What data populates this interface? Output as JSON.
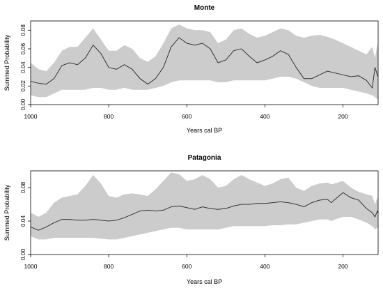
{
  "chart_data": [
    {
      "type": "area",
      "title": "Monte",
      "xlabel": "Years cal BP",
      "ylabel": "Summed Probability",
      "xlim": [
        1000,
        110
      ],
      "ylim": [
        0,
        0.09
      ],
      "xticks": [
        1000,
        800,
        600,
        400,
        200
      ],
      "yticks": [
        0.0,
        0.02,
        0.04,
        0.06,
        0.08
      ],
      "ytick_labels": [
        "0.00",
        "0.02",
        "0.04",
        "0.06",
        "0.08"
      ],
      "band_color": "#cccccc",
      "line_color": "#333333",
      "series": [
        {
          "role": "mean",
          "x": [
            1000,
            980,
            960,
            940,
            920,
            900,
            880,
            860,
            840,
            820,
            800,
            780,
            760,
            740,
            720,
            700,
            680,
            660,
            640,
            620,
            600,
            580,
            560,
            540,
            520,
            500,
            480,
            460,
            440,
            420,
            400,
            380,
            360,
            340,
            320,
            300,
            280,
            260,
            240,
            220,
            200,
            180,
            160,
            140,
            125,
            118,
            112,
            110
          ],
          "y": [
            0.025,
            0.023,
            0.022,
            0.028,
            0.042,
            0.045,
            0.043,
            0.05,
            0.064,
            0.055,
            0.04,
            0.038,
            0.043,
            0.038,
            0.028,
            0.022,
            0.028,
            0.04,
            0.062,
            0.072,
            0.066,
            0.064,
            0.066,
            0.06,
            0.045,
            0.048,
            0.058,
            0.06,
            0.052,
            0.045,
            0.048,
            0.052,
            0.058,
            0.054,
            0.04,
            0.028,
            0.028,
            0.032,
            0.036,
            0.034,
            0.032,
            0.03,
            0.031,
            0.026,
            0.018,
            0.04,
            0.032,
            0.03
          ]
        },
        {
          "role": "upper",
          "x": [
            1000,
            980,
            960,
            940,
            920,
            900,
            880,
            860,
            840,
            820,
            800,
            780,
            760,
            740,
            720,
            700,
            680,
            660,
            640,
            620,
            600,
            580,
            560,
            540,
            520,
            500,
            480,
            460,
            440,
            420,
            400,
            380,
            360,
            340,
            320,
            300,
            280,
            260,
            240,
            220,
            200,
            180,
            160,
            140,
            125,
            118,
            112,
            110
          ],
          "y": [
            0.045,
            0.038,
            0.036,
            0.045,
            0.058,
            0.062,
            0.062,
            0.072,
            0.082,
            0.07,
            0.058,
            0.058,
            0.064,
            0.06,
            0.05,
            0.046,
            0.052,
            0.066,
            0.082,
            0.086,
            0.082,
            0.08,
            0.08,
            0.078,
            0.066,
            0.07,
            0.08,
            0.082,
            0.076,
            0.072,
            0.074,
            0.078,
            0.082,
            0.08,
            0.074,
            0.072,
            0.074,
            0.075,
            0.073,
            0.07,
            0.066,
            0.062,
            0.058,
            0.054,
            0.062,
            0.05,
            0.065,
            0.062
          ]
        },
        {
          "role": "lower",
          "x": [
            1000,
            980,
            960,
            940,
            920,
            900,
            880,
            860,
            840,
            820,
            800,
            780,
            760,
            740,
            720,
            700,
            680,
            660,
            640,
            620,
            600,
            580,
            560,
            540,
            520,
            500,
            480,
            460,
            440,
            420,
            400,
            380,
            360,
            340,
            320,
            300,
            280,
            260,
            240,
            220,
            200,
            180,
            160,
            140,
            125,
            118,
            112,
            110
          ],
          "y": [
            0.01,
            0.008,
            0.008,
            0.012,
            0.016,
            0.016,
            0.016,
            0.016,
            0.018,
            0.018,
            0.016,
            0.016,
            0.018,
            0.016,
            0.016,
            0.016,
            0.018,
            0.02,
            0.024,
            0.026,
            0.026,
            0.026,
            0.026,
            0.026,
            0.024,
            0.024,
            0.026,
            0.026,
            0.026,
            0.026,
            0.026,
            0.028,
            0.03,
            0.03,
            0.028,
            0.024,
            0.02,
            0.018,
            0.018,
            0.018,
            0.018,
            0.016,
            0.014,
            0.012,
            0.01,
            0.008,
            0.006,
            0.005
          ]
        }
      ]
    },
    {
      "type": "area",
      "title": "Patagonia",
      "xlabel": "Years cal BP",
      "ylabel": "Summed Probability",
      "xlim": [
        1000,
        110
      ],
      "ylim": [
        0,
        0.1
      ],
      "xticks": [
        1000,
        800,
        600,
        400,
        200
      ],
      "yticks": [
        0.0,
        0.04,
        0.08
      ],
      "ytick_labels": [
        "0.00",
        "0.04",
        "0.08"
      ],
      "band_color": "#cccccc",
      "line_color": "#333333",
      "series": [
        {
          "role": "mean",
          "x": [
            1000,
            980,
            960,
            940,
            920,
            900,
            880,
            860,
            840,
            820,
            800,
            780,
            760,
            740,
            720,
            700,
            680,
            660,
            640,
            620,
            600,
            580,
            560,
            540,
            520,
            500,
            480,
            460,
            440,
            420,
            400,
            380,
            360,
            340,
            320,
            300,
            280,
            260,
            240,
            230,
            220,
            200,
            180,
            160,
            140,
            125,
            118,
            112,
            110
          ],
          "y": [
            0.033,
            0.029,
            0.033,
            0.038,
            0.042,
            0.042,
            0.041,
            0.041,
            0.042,
            0.041,
            0.04,
            0.041,
            0.044,
            0.048,
            0.052,
            0.053,
            0.052,
            0.053,
            0.057,
            0.058,
            0.056,
            0.054,
            0.057,
            0.055,
            0.054,
            0.055,
            0.058,
            0.06,
            0.06,
            0.061,
            0.061,
            0.062,
            0.063,
            0.062,
            0.06,
            0.057,
            0.062,
            0.065,
            0.066,
            0.062,
            0.066,
            0.074,
            0.068,
            0.065,
            0.055,
            0.05,
            0.045,
            0.052,
            0.05
          ]
        },
        {
          "role": "upper",
          "x": [
            1000,
            980,
            960,
            940,
            920,
            900,
            880,
            860,
            840,
            820,
            800,
            780,
            760,
            740,
            720,
            700,
            680,
            660,
            640,
            620,
            600,
            580,
            560,
            540,
            520,
            500,
            480,
            460,
            440,
            420,
            400,
            380,
            360,
            340,
            320,
            300,
            280,
            260,
            240,
            230,
            220,
            200,
            180,
            160,
            140,
            125,
            118,
            112,
            110
          ],
          "y": [
            0.05,
            0.045,
            0.05,
            0.062,
            0.068,
            0.07,
            0.072,
            0.082,
            0.095,
            0.085,
            0.07,
            0.068,
            0.072,
            0.073,
            0.072,
            0.07,
            0.078,
            0.088,
            0.098,
            0.096,
            0.088,
            0.09,
            0.095,
            0.09,
            0.08,
            0.082,
            0.09,
            0.095,
            0.09,
            0.086,
            0.082,
            0.085,
            0.09,
            0.092,
            0.08,
            0.076,
            0.082,
            0.085,
            0.086,
            0.084,
            0.085,
            0.088,
            0.08,
            0.075,
            0.072,
            0.07,
            0.06,
            0.068,
            0.066
          ]
        },
        {
          "role": "lower",
          "x": [
            1000,
            980,
            960,
            940,
            920,
            900,
            880,
            860,
            840,
            820,
            800,
            780,
            760,
            740,
            720,
            700,
            680,
            660,
            640,
            620,
            600,
            580,
            560,
            540,
            520,
            500,
            480,
            460,
            440,
            420,
            400,
            380,
            360,
            340,
            320,
            300,
            280,
            260,
            240,
            230,
            220,
            200,
            180,
            160,
            140,
            125,
            118,
            112,
            110
          ],
          "y": [
            0.022,
            0.018,
            0.018,
            0.02,
            0.02,
            0.02,
            0.02,
            0.02,
            0.02,
            0.019,
            0.018,
            0.018,
            0.02,
            0.022,
            0.024,
            0.026,
            0.028,
            0.03,
            0.032,
            0.032,
            0.03,
            0.03,
            0.03,
            0.03,
            0.03,
            0.032,
            0.034,
            0.034,
            0.034,
            0.034,
            0.034,
            0.035,
            0.035,
            0.036,
            0.036,
            0.038,
            0.04,
            0.042,
            0.042,
            0.04,
            0.042,
            0.045,
            0.045,
            0.042,
            0.038,
            0.034,
            0.03,
            0.032,
            0.032
          ]
        }
      ]
    }
  ]
}
